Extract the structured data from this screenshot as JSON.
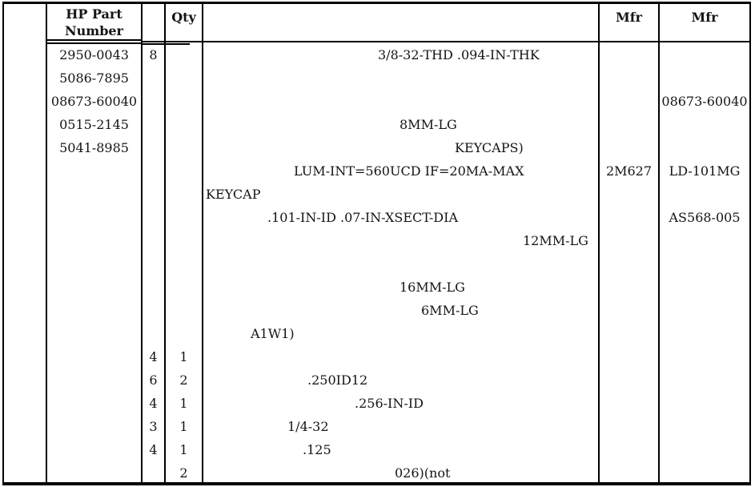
{
  "table": {
    "headers": {
      "hp_line1": "HP Part",
      "hp_line2": "Number",
      "qty": "Qty",
      "mfr1": "Mfr",
      "mfr2": "Mfr"
    },
    "rows": [
      {
        "hp": "2950-0043",
        "cd": "8",
        "qty": "",
        "desc": "3/8-32-THD .094-IN-THK",
        "indent": 218,
        "mfr": "",
        "mfr2": ""
      },
      {
        "hp": "5086-7895",
        "cd": "",
        "qty": "",
        "desc": "",
        "indent": 0,
        "mfr": "",
        "mfr2": ""
      },
      {
        "hp": "08673-60040",
        "cd": "",
        "qty": "",
        "desc": "",
        "indent": 0,
        "mfr": "",
        "mfr2": "08673-60040"
      },
      {
        "hp": "0515-2145",
        "cd": "",
        "qty": "",
        "desc": "8MM-LG",
        "indent": 245,
        "mfr": "",
        "mfr2": ""
      },
      {
        "hp": "5041-8985",
        "cd": "",
        "qty": "",
        "desc": "KEYCAPS)",
        "indent": 314,
        "mfr": "",
        "mfr2": ""
      },
      {
        "hp": "",
        "cd": "",
        "qty": "",
        "desc": "LUM-INT=560UCD IF=20MA-MAX",
        "indent": 113,
        "mfr": "2M627",
        "mfr2": "LD-101MG"
      },
      {
        "hp": "",
        "cd": "",
        "qty": "",
        "desc": "KEYCAP",
        "indent": 3,
        "mfr": "",
        "mfr2": ""
      },
      {
        "hp": "",
        "cd": "",
        "qty": "",
        "desc": ".101-IN-ID .07-IN-XSECT-DIA",
        "indent": 80,
        "mfr": "",
        "mfr2": "AS568-005"
      },
      {
        "hp": "",
        "cd": "",
        "qty": "",
        "desc": "12MM-LG",
        "indent": 399,
        "mfr": "",
        "mfr2": ""
      },
      {
        "hp": "",
        "cd": "",
        "qty": "",
        "desc": "",
        "indent": 0,
        "mfr": "",
        "mfr2": ""
      },
      {
        "hp": "",
        "cd": "",
        "qty": "",
        "desc": "16MM-LG",
        "indent": 245,
        "mfr": "",
        "mfr2": ""
      },
      {
        "hp": "",
        "cd": "",
        "qty": "",
        "desc": "6MM-LG",
        "indent": 272,
        "mfr": "",
        "mfr2": ""
      },
      {
        "hp": "",
        "cd": "",
        "qty": "",
        "desc": "A1W1)",
        "indent": 59,
        "mfr": "",
        "mfr2": ""
      },
      {
        "hp": "",
        "cd": "4",
        "qty": "1",
        "desc": "",
        "indent": 0,
        "mfr": "",
        "mfr2": ""
      },
      {
        "hp": "",
        "cd": "6",
        "qty": "2",
        "desc": ".250ID12",
        "indent": 130,
        "mfr": "",
        "mfr2": ""
      },
      {
        "hp": "",
        "cd": "4",
        "qty": "1",
        "desc": ".256-IN-ID",
        "indent": 189,
        "mfr": "",
        "mfr2": ""
      },
      {
        "hp": "",
        "cd": "3",
        "qty": "1",
        "desc": "1/4-32",
        "indent": 105,
        "mfr": "",
        "mfr2": ""
      },
      {
        "hp": "",
        "cd": "4",
        "qty": "1",
        "desc": ".125",
        "indent": 124,
        "mfr": "",
        "mfr2": ""
      },
      {
        "hp": "",
        "cd": "",
        "qty": "2",
        "desc": "026)(not",
        "indent": 239,
        "mfr": "",
        "mfr2": ""
      }
    ]
  },
  "colors": {
    "ink": "#141414",
    "line": "#000000",
    "paper": "#ffffff"
  }
}
